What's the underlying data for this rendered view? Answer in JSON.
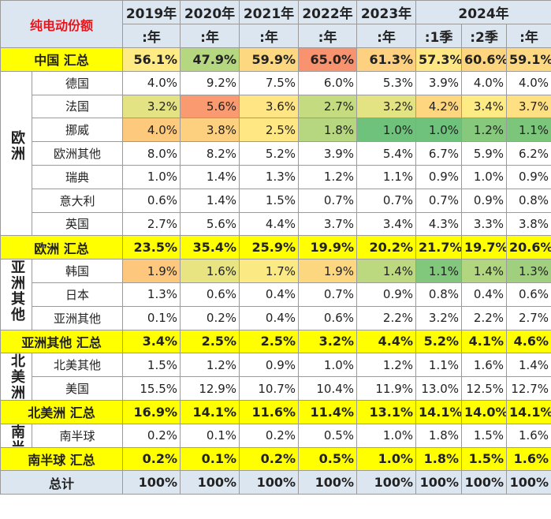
{
  "header": {
    "title": "纯电动份额",
    "years": [
      "2019年",
      "2020年",
      "2021年",
      "2022年",
      "2023年",
      "2024年"
    ],
    "periods": [
      ":年",
      ":年",
      ":年",
      ":年",
      ":年",
      ":1季",
      ":2季",
      ":年"
    ]
  },
  "body": [
    {
      "name": "中国 汇总",
      "color": "#ffff00",
      "values": [
        "56.1%",
        "47.9%",
        "59.9%",
        "65.0%",
        "61.3%",
        "57.3%",
        "60.6%",
        "59.1%"
      ],
      "cell_colors": [
        "#ffeb84",
        "#b5d77f",
        "#fed880",
        "#f8926f",
        "#fdd17f",
        "#ffe884",
        "#fdd57f",
        "#fed981"
      ]
    },
    {
      "region": "欧洲",
      "rows": [
        {
          "name": "德国",
          "values": [
            "4.0%",
            "9.2%",
            "7.5%",
            "6.0%",
            "5.3%",
            "3.9%",
            "4.0%",
            "4.0%"
          ]
        },
        {
          "name": "法国",
          "values": [
            "3.2%",
            "5.6%",
            "3.6%",
            "2.7%",
            "3.2%",
            "4.2%",
            "3.4%",
            "3.7%"
          ],
          "cell_colors": [
            "#e4e383",
            "#f99a70",
            "#ffe583",
            "#c4db80",
            "#e4e383",
            "#fed680",
            "#feeb84",
            "#fee082"
          ]
        },
        {
          "name": "挪威",
          "values": [
            "4.0%",
            "3.8%",
            "2.5%",
            "1.8%",
            "1.0%",
            "1.0%",
            "1.2%",
            "1.1%"
          ],
          "cell_colors": [
            "#fdc97d",
            "#fdd07f",
            "#ffe884",
            "#b6d77f",
            "#6fc27b",
            "#6fc27b",
            "#86c97c",
            "#7bc67b"
          ]
        },
        {
          "name": "欧洲其他",
          "values": [
            "8.0%",
            "8.2%",
            "5.2%",
            "3.9%",
            "5.4%",
            "6.7%",
            "5.9%",
            "6.2%"
          ]
        },
        {
          "name": "瑞典",
          "values": [
            "1.0%",
            "1.4%",
            "1.3%",
            "1.2%",
            "1.1%",
            "0.9%",
            "1.0%",
            "0.9%"
          ]
        },
        {
          "name": "意大利",
          "values": [
            "0.6%",
            "1.4%",
            "1.5%",
            "0.7%",
            "0.7%",
            "0.7%",
            "0.9%",
            "0.8%"
          ]
        },
        {
          "name": "英国",
          "values": [
            "2.7%",
            "5.6%",
            "4.4%",
            "3.7%",
            "3.4%",
            "4.3%",
            "3.3%",
            "3.8%"
          ]
        }
      ]
    },
    {
      "name": "欧洲 汇总",
      "color": "#ffff00",
      "values": [
        "23.5%",
        "35.4%",
        "25.9%",
        "19.9%",
        "20.2%",
        "21.7%",
        "19.7%",
        "20.6%"
      ]
    },
    {
      "region": "亚洲其他",
      "rows": [
        {
          "name": "韩国",
          "values": [
            "1.9%",
            "1.6%",
            "1.7%",
            "1.9%",
            "1.4%",
            "1.1%",
            "1.4%",
            "1.3%"
          ],
          "cell_colors": [
            "#fdc87d",
            "#e8e482",
            "#fbe983",
            "#fdd780",
            "#bcd980",
            "#81c77c",
            "#b2d67f",
            "#a0d07e"
          ]
        },
        {
          "name": "日本",
          "values": [
            "1.3%",
            "0.6%",
            "0.4%",
            "0.7%",
            "0.9%",
            "0.8%",
            "0.4%",
            "0.6%"
          ]
        },
        {
          "name": "亚洲其他",
          "values": [
            "0.1%",
            "0.2%",
            "0.4%",
            "0.6%",
            "2.2%",
            "3.2%",
            "2.2%",
            "2.7%"
          ]
        }
      ]
    },
    {
      "name": "亚洲其他 汇总",
      "color": "#ffff00",
      "values": [
        "3.4%",
        "2.5%",
        "2.5%",
        "3.2%",
        "4.4%",
        "5.2%",
        "4.1%",
        "4.6%"
      ]
    },
    {
      "region": "北美洲",
      "rows": [
        {
          "name": "北美其他",
          "values": [
            "1.5%",
            "1.2%",
            "0.9%",
            "1.0%",
            "1.2%",
            "1.1%",
            "1.6%",
            "1.4%"
          ]
        },
        {
          "name": "美国",
          "values": [
            "15.5%",
            "12.9%",
            "10.7%",
            "10.4%",
            "11.9%",
            "13.0%",
            "12.5%",
            "12.7%"
          ]
        }
      ]
    },
    {
      "name": "北美洲 汇总",
      "color": "#ffff00",
      "values": [
        "16.9%",
        "14.1%",
        "11.6%",
        "11.4%",
        "13.1%",
        "14.1%",
        "14.0%",
        "14.1%"
      ]
    },
    {
      "region": "南半球",
      "rows": [
        {
          "name": "南半球",
          "values": [
            "0.2%",
            "0.1%",
            "0.2%",
            "0.5%",
            "1.0%",
            "1.8%",
            "1.5%",
            "1.6%"
          ]
        }
      ]
    },
    {
      "name": "南半球 汇总",
      "color": "#ffff00",
      "values": [
        "0.2%",
        "0.1%",
        "0.2%",
        "0.5%",
        "1.0%",
        "1.8%",
        "1.5%",
        "1.6%"
      ]
    },
    {
      "name": "总计",
      "color": "#dce6f1",
      "values": [
        "100%",
        "100%",
        "100%",
        "100%",
        "100%",
        "100%",
        "100%",
        "100%"
      ]
    }
  ]
}
